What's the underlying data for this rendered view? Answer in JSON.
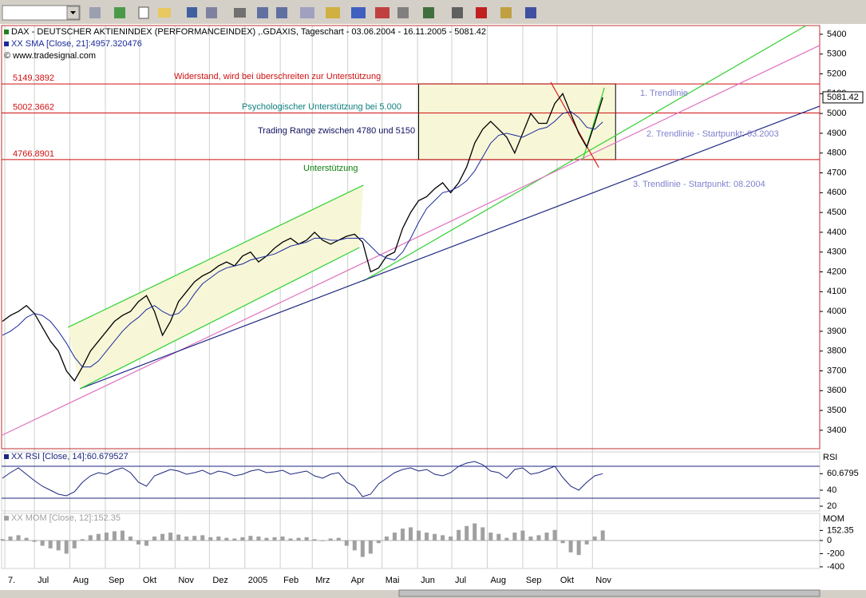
{
  "chart_data": [
    {
      "type": "line",
      "source": "© www.tradesignal.com",
      "xlim": [
        0,
        102.1
      ],
      "xticks": [
        {
          "value": 0.3,
          "label": "7."
        },
        {
          "value": 4.0,
          "label": "Jul"
        },
        {
          "value": 8.43,
          "label": "Aug"
        },
        {
          "value": 12.86,
          "label": "Sep"
        },
        {
          "value": 17.14,
          "label": "Okt"
        },
        {
          "value": 21.57,
          "label": "Nov"
        },
        {
          "value": 25.86,
          "label": "Dez"
        },
        {
          "value": 30.29,
          "label": "2005"
        },
        {
          "value": 34.71,
          "label": "Feb"
        },
        {
          "value": 38.71,
          "label": "Mrz"
        },
        {
          "value": 43.14,
          "label": "Apr"
        },
        {
          "value": 47.43,
          "label": "Mai"
        },
        {
          "value": 51.86,
          "label": "Jun"
        },
        {
          "value": 56.14,
          "label": "Jul"
        },
        {
          "value": 60.57,
          "label": "Aug"
        },
        {
          "value": 65.0,
          "label": "Sep"
        },
        {
          "value": 69.29,
          "label": "Okt"
        },
        {
          "value": 73.71,
          "label": "Nov"
        }
      ],
      "ylim": [
        3307,
        5444
      ],
      "yticks": [
        3400,
        3500,
        3600,
        3700,
        3800,
        3900,
        4000,
        4100,
        4200,
        4300,
        4400,
        4500,
        4600,
        4700,
        4800,
        4900,
        5000,
        5100,
        5200,
        5300,
        5400
      ],
      "last_value": 5081.42,
      "levels": [
        5149.3892,
        5002.3662,
        4766.8901
      ],
      "levels_color": "#d01010",
      "range_box": [
        52,
        76.6
      ],
      "series": [
        {
          "name": "DAX  - DEUTSCHER AKTIENINDEX (PERFORMANCEINDEX) ,.GDAXIS, Tageschart - 03.06.2004 - 16.11.2005 - 5081.42",
          "color": "#000000",
          "values": [
            3950,
            3980,
            4000,
            4030,
            3990,
            3920,
            3850,
            3800,
            3700,
            3650,
            3720,
            3800,
            3850,
            3900,
            3950,
            3980,
            4000,
            4050,
            4080,
            4000,
            3880,
            3950,
            4050,
            4100,
            4150,
            4180,
            4200,
            4230,
            4250,
            4230,
            4280,
            4300,
            4250,
            4280,
            4320,
            4350,
            4370,
            4340,
            4360,
            4400,
            4360,
            4340,
            4360,
            4380,
            4390,
            4350,
            4200,
            4220,
            4280,
            4300,
            4420,
            4500,
            4560,
            4580,
            4620,
            4650,
            4600,
            4650,
            4730,
            4850,
            4920,
            4960,
            4920,
            4880,
            4800,
            4900,
            5000,
            4950,
            4950,
            5050,
            5100,
            5000,
            4900,
            4830,
            4950,
            5081.42
          ]
        },
        {
          "name": "XX SMA [Close, 21]:4957.320476",
          "color": "#1a2a9a",
          "values": [
            3880,
            3900,
            3930,
            3970,
            3990,
            3980,
            3950,
            3900,
            3840,
            3770,
            3720,
            3720,
            3750,
            3800,
            3850,
            3900,
            3940,
            3970,
            4010,
            4030,
            4000,
            3980,
            3990,
            4030,
            4090,
            4140,
            4170,
            4200,
            4220,
            4230,
            4240,
            4260,
            4270,
            4280,
            4290,
            4310,
            4330,
            4340,
            4350,
            4370,
            4370,
            4360,
            4360,
            4370,
            4370,
            4370,
            4330,
            4290,
            4270,
            4260,
            4300,
            4370,
            4450,
            4520,
            4560,
            4600,
            4610,
            4630,
            4660,
            4710,
            4780,
            4850,
            4890,
            4900,
            4890,
            4880,
            4900,
            4920,
            4930,
            4960,
            5000,
            5010,
            4980,
            4930,
            4920,
            4957.32
          ]
        }
      ],
      "trendlines": [
        {
          "label": "1. Trendlinie",
          "color": "#30d030",
          "points": [
            [
              45.1,
              4154
            ],
            [
              100.4,
              5444
            ]
          ]
        },
        {
          "label": "2. Trendlinie - Startpunkt: 03.2003",
          "color": "#e070c0",
          "points": [
            [
              0,
              3376
            ],
            [
              102.1,
              5344
            ]
          ]
        },
        {
          "label": "3. Trendlinie - Startpunkt: 08.2004",
          "color": "#1c2680",
          "points": [
            [
              9.7,
              3610
            ],
            [
              102.1,
              5037
            ]
          ]
        },
        {
          "color": "#30d030",
          "points": [
            [
              8.2,
              3920
            ],
            [
              45.1,
              4638
            ]
          ]
        },
        {
          "color": "#30d030",
          "points": [
            [
              9.7,
              3610
            ],
            [
              44.6,
              4323
            ]
          ]
        },
        {
          "color": "#e02020",
          "points": [
            [
              68.5,
              5158
            ],
            [
              74.5,
              4727
            ]
          ]
        },
        {
          "color": "#30d030",
          "points": [
            [
              72.5,
              4766
            ],
            [
              75.2,
              5130
            ]
          ]
        }
      ],
      "trendline_label_color": "#8080d0",
      "annotations": [
        {
          "text": "Widerstand, wird bei überschreiten zur Unterstützung",
          "color": "#d01010"
        },
        {
          "text": "Psychologischer Unterstützung bei 5.000",
          "color": "#108080"
        },
        {
          "text": "Trading Range zwischen 4780 und 5150",
          "color": "#101060"
        },
        {
          "text": "Unterstützung",
          "color": "#108010"
        }
      ]
    },
    {
      "type": "line",
      "axis_label": "RSI",
      "xlim": [
        0,
        102.1
      ],
      "ylim": [
        14,
        88
      ],
      "yticks": [
        60.6795,
        40,
        20
      ],
      "levels": [
        70,
        30
      ],
      "levels_color": "#1c2680",
      "series": [
        {
          "name": "XX RSI [Close, 14]:60.679527",
          "color": "#1c2680",
          "values": [
            55,
            62,
            68,
            60,
            52,
            45,
            40,
            35,
            33,
            38,
            50,
            58,
            62,
            60,
            65,
            68,
            62,
            50,
            45,
            58,
            62,
            66,
            64,
            60,
            62,
            65,
            60,
            64,
            62,
            58,
            60,
            64,
            66,
            62,
            63,
            65,
            60,
            62,
            64,
            58,
            55,
            60,
            62,
            50,
            45,
            32,
            35,
            48,
            55,
            62,
            66,
            68,
            64,
            66,
            60,
            58,
            62,
            70,
            74,
            76,
            72,
            64,
            62,
            55,
            66,
            68,
            60,
            62,
            66,
            70,
            56,
            45,
            40,
            50,
            58,
            60.68
          ]
        }
      ]
    },
    {
      "type": "bar",
      "axis_label": "MOM",
      "xlim": [
        0,
        102.1
      ],
      "ylim": [
        -425,
        412
      ],
      "yticks": [
        152.35,
        0,
        -200,
        -400
      ],
      "series": [
        {
          "name": "XX MOM [Close, 12]:152.35",
          "color": "#a0a0a0",
          "values": [
            20,
            60,
            80,
            40,
            -20,
            -80,
            -120,
            -150,
            -200,
            -120,
            20,
            80,
            100,
            120,
            140,
            150,
            60,
            -60,
            -80,
            60,
            100,
            120,
            90,
            60,
            70,
            80,
            50,
            60,
            40,
            30,
            50,
            70,
            60,
            40,
            50,
            60,
            30,
            40,
            50,
            20,
            -10,
            30,
            40,
            -80,
            -150,
            -250,
            -200,
            -40,
            60,
            120,
            180,
            200,
            150,
            120,
            100,
            80,
            60,
            160,
            220,
            260,
            200,
            120,
            100,
            40,
            120,
            150,
            60,
            80,
            120,
            160,
            -40,
            -180,
            -220,
            -60,
            60,
            152.35
          ]
        }
      ]
    }
  ]
}
